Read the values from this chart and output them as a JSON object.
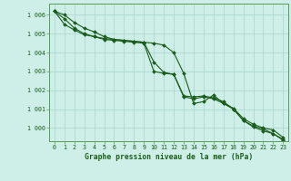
{
  "title": "Graphe pression niveau de la mer (hPa)",
  "background_color": "#ceeee8",
  "grid_color": "#aad4ce",
  "line_color": "#1a5c1a",
  "xlim_min": -0.5,
  "xlim_max": 23.5,
  "ylim_min": 999.3,
  "ylim_max": 1006.6,
  "yticks": [
    1000,
    1001,
    1002,
    1003,
    1004,
    1005,
    1006
  ],
  "ytick_labels": [
    "1 000",
    "1 001",
    "1 002",
    "1 003",
    "1 004",
    "1 005",
    "1 006"
  ],
  "xticks": [
    0,
    1,
    2,
    3,
    4,
    5,
    6,
    7,
    8,
    9,
    10,
    11,
    12,
    13,
    14,
    15,
    16,
    17,
    18,
    19,
    20,
    21,
    22,
    23
  ],
  "series1": [
    1006.2,
    1006.0,
    1005.6,
    1005.3,
    1005.1,
    1004.85,
    1004.7,
    1004.65,
    1004.6,
    1004.55,
    1004.5,
    1004.4,
    1004.0,
    1002.9,
    1001.3,
    1001.4,
    1001.75,
    1001.3,
    1001.05,
    1000.5,
    1000.2,
    1000.0,
    999.9,
    999.5
  ],
  "series2": [
    1006.2,
    1005.8,
    1005.3,
    1005.0,
    1004.85,
    1004.7,
    1004.65,
    1004.6,
    1004.55,
    1004.5,
    1003.0,
    1002.9,
    1002.85,
    1001.7,
    1001.65,
    1001.7,
    1001.6,
    1001.4,
    1001.0,
    1000.4,
    1000.05,
    999.85,
    999.7,
    999.4
  ],
  "series3": [
    1006.2,
    1005.5,
    1005.2,
    1004.95,
    1004.85,
    1004.75,
    1004.7,
    1004.65,
    1004.6,
    1004.55,
    1003.5,
    1002.95,
    1002.85,
    1001.65,
    1001.55,
    1001.65,
    1001.55,
    1001.3,
    1001.0,
    1000.4,
    1000.1,
    999.95,
    999.7,
    999.35
  ]
}
